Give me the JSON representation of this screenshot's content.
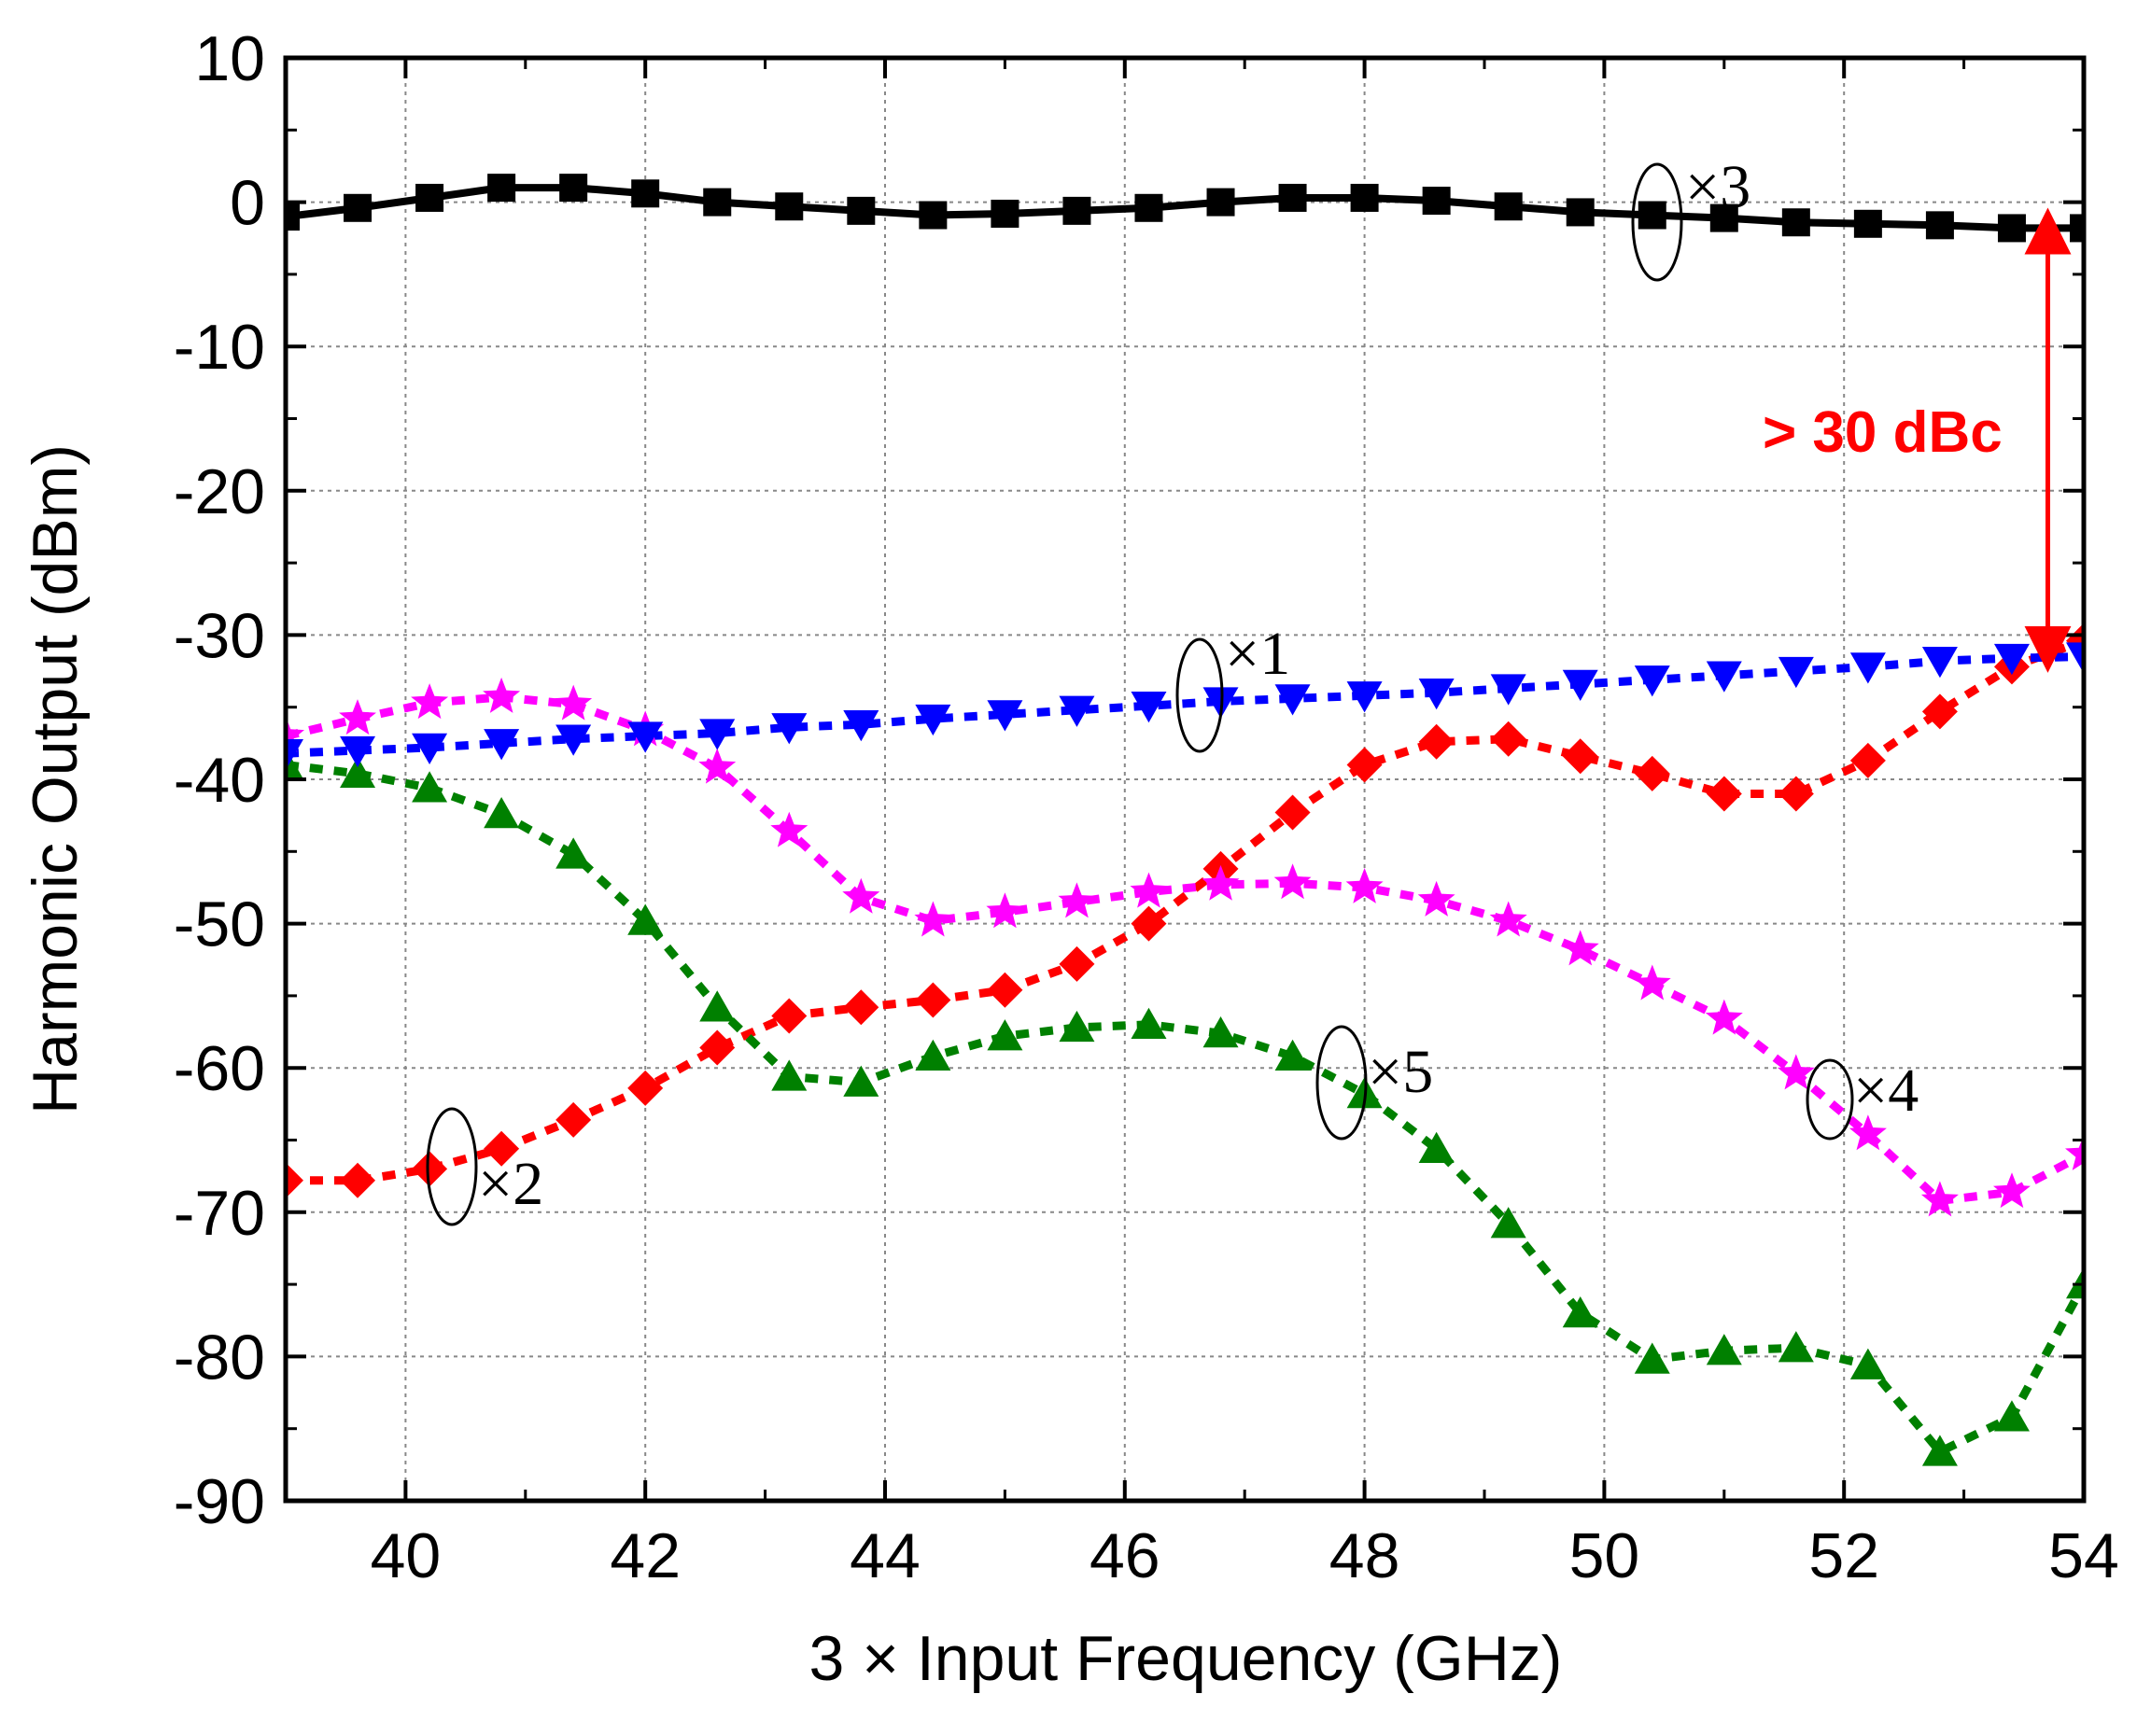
{
  "chart_data": {
    "type": "line",
    "title": "",
    "xlabel": "3 × Input Frequency (GHz)",
    "ylabel": "Harmonic Output (dBm)",
    "xlim": [
      39,
      54
    ],
    "ylim": [
      -90,
      10
    ],
    "xticks": [
      40,
      42,
      44,
      46,
      48,
      50,
      52,
      54
    ],
    "yticks": [
      10,
      0,
      -10,
      -20,
      -30,
      -40,
      -50,
      -60,
      -70,
      -80,
      -90
    ],
    "grid": true,
    "x": [
      39.0,
      39.6,
      40.2,
      40.8,
      41.4,
      42.0,
      42.6,
      43.2,
      43.8,
      44.4,
      45.0,
      45.6,
      46.2,
      46.8,
      47.4,
      48.0,
      48.6,
      49.2,
      49.8,
      50.4,
      51.0,
      51.6,
      52.2,
      52.8,
      53.4,
      54.0
    ],
    "series": [
      {
        "name": "×1",
        "color": "#0000ff",
        "marker": "triangle-down",
        "line": "dashed",
        "values": [
          -38.2,
          -38.0,
          -37.8,
          -37.5,
          -37.2,
          -37.0,
          -36.8,
          -36.4,
          -36.2,
          -35.8,
          -35.5,
          -35.2,
          -34.9,
          -34.6,
          -34.4,
          -34.2,
          -34.0,
          -33.7,
          -33.4,
          -33.1,
          -32.8,
          -32.5,
          -32.2,
          -31.8,
          -31.6,
          -31.5
        ]
      },
      {
        "name": "×2",
        "color": "#ff0000",
        "marker": "diamond",
        "line": "dashed",
        "values": [
          -67.8,
          -67.8,
          -67.0,
          -65.6,
          -63.6,
          -61.4,
          -58.6,
          -56.4,
          -55.8,
          -55.3,
          -54.6,
          -52.8,
          -50.0,
          -46.2,
          -42.3,
          -39.0,
          -37.4,
          -37.2,
          -38.4,
          -39.6,
          -41.0,
          -41.0,
          -38.7,
          -35.3,
          -32.2,
          -30.4
        ]
      },
      {
        "name": "×3",
        "color": "#000000",
        "marker": "square",
        "line": "solid",
        "values": [
          -1.0,
          -0.4,
          0.3,
          1.0,
          1.0,
          0.6,
          0.0,
          -0.3,
          -0.6,
          -0.9,
          -0.8,
          -0.6,
          -0.4,
          0.0,
          0.3,
          0.3,
          0.1,
          -0.3,
          -0.7,
          -0.9,
          -1.1,
          -1.4,
          -1.5,
          -1.6,
          -1.8,
          -1.8
        ]
      },
      {
        "name": "×4",
        "color": "#ff00ff",
        "marker": "star",
        "line": "dashed",
        "values": [
          -37.0,
          -35.8,
          -34.7,
          -34.3,
          -34.8,
          -36.6,
          -39.2,
          -43.6,
          -48.2,
          -49.8,
          -49.2,
          -48.5,
          -47.8,
          -47.3,
          -47.2,
          -47.5,
          -48.4,
          -49.8,
          -51.8,
          -54.2,
          -56.6,
          -60.4,
          -64.6,
          -69.2,
          -68.6,
          -66.0
        ]
      },
      {
        "name": "×5",
        "color": "#008000",
        "marker": "triangle-up",
        "line": "dashed",
        "values": [
          -39.0,
          -39.6,
          -40.6,
          -42.4,
          -45.2,
          -49.8,
          -55.8,
          -60.6,
          -61.0,
          -59.2,
          -57.8,
          -57.2,
          -57.0,
          -57.6,
          -59.2,
          -61.8,
          -65.6,
          -70.8,
          -77.0,
          -80.2,
          -79.6,
          -79.4,
          -80.6,
          -86.6,
          -84.2,
          -75.0
        ]
      }
    ],
    "annotations": [
      {
        "text": "> 30 dBc",
        "color": "#ff0000",
        "arrow_between_dbm": [
          -2,
          -31
        ],
        "arrow_x_ghz": 53.7
      }
    ]
  }
}
